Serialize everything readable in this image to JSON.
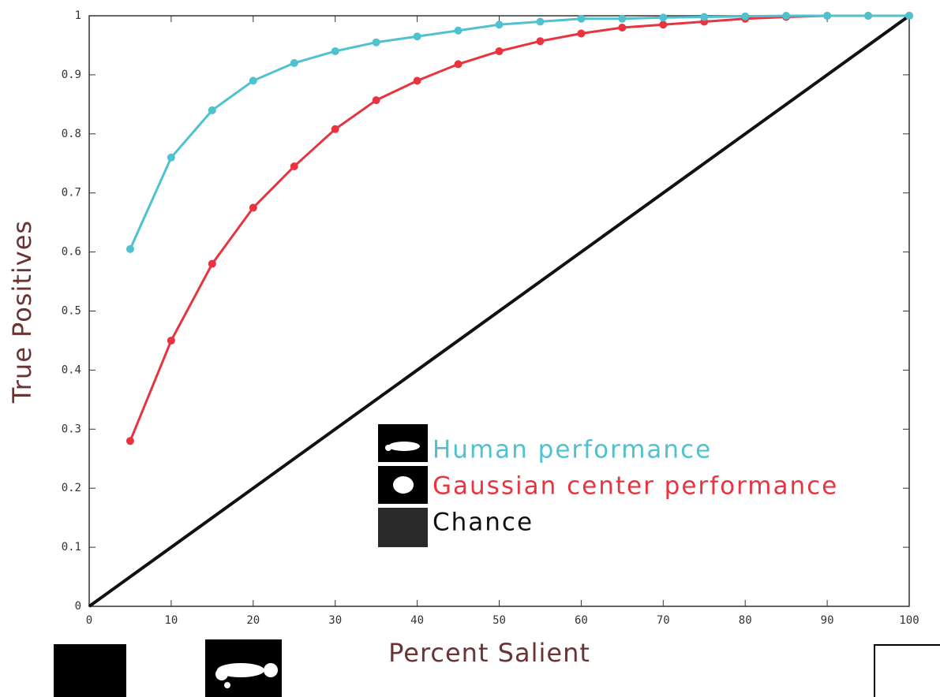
{
  "chart_data": {
    "type": "line",
    "xlabel": "Percent Salient",
    "ylabel": "True Positives",
    "xlim": [
      0,
      100
    ],
    "ylim": [
      0,
      1
    ],
    "xticks": [
      0,
      10,
      20,
      30,
      40,
      50,
      60,
      70,
      80,
      90,
      100
    ],
    "yticks": [
      0,
      0.1,
      0.2,
      0.3,
      0.4,
      0.5,
      0.6,
      0.7,
      0.8,
      0.9,
      1
    ],
    "series": [
      {
        "name": "Human performance",
        "color": "#4fc1cf",
        "x": [
          5,
          10,
          15,
          20,
          25,
          30,
          35,
          40,
          45,
          50,
          55,
          60,
          65,
          70,
          75,
          80,
          85,
          90,
          95,
          100
        ],
        "values": [
          0.605,
          0.76,
          0.84,
          0.89,
          0.92,
          0.94,
          0.955,
          0.965,
          0.975,
          0.985,
          0.99,
          0.995,
          0.995,
          0.997,
          0.998,
          0.999,
          1,
          1,
          1,
          1
        ]
      },
      {
        "name": "Gaussian center performance",
        "color": "#e8343f",
        "x": [
          5,
          10,
          15,
          20,
          25,
          30,
          35,
          40,
          45,
          50,
          55,
          60,
          65,
          70,
          75,
          80,
          85,
          90,
          95,
          100
        ],
        "values": [
          0.28,
          0.45,
          0.58,
          0.675,
          0.745,
          0.808,
          0.857,
          0.89,
          0.918,
          0.94,
          0.957,
          0.97,
          0.98,
          0.985,
          0.99,
          0.995,
          0.998,
          1,
          1,
          1
        ]
      },
      {
        "name": "Chance",
        "color": "#111111",
        "x": [
          0,
          100
        ],
        "values": [
          0,
          1
        ]
      }
    ]
  }
}
